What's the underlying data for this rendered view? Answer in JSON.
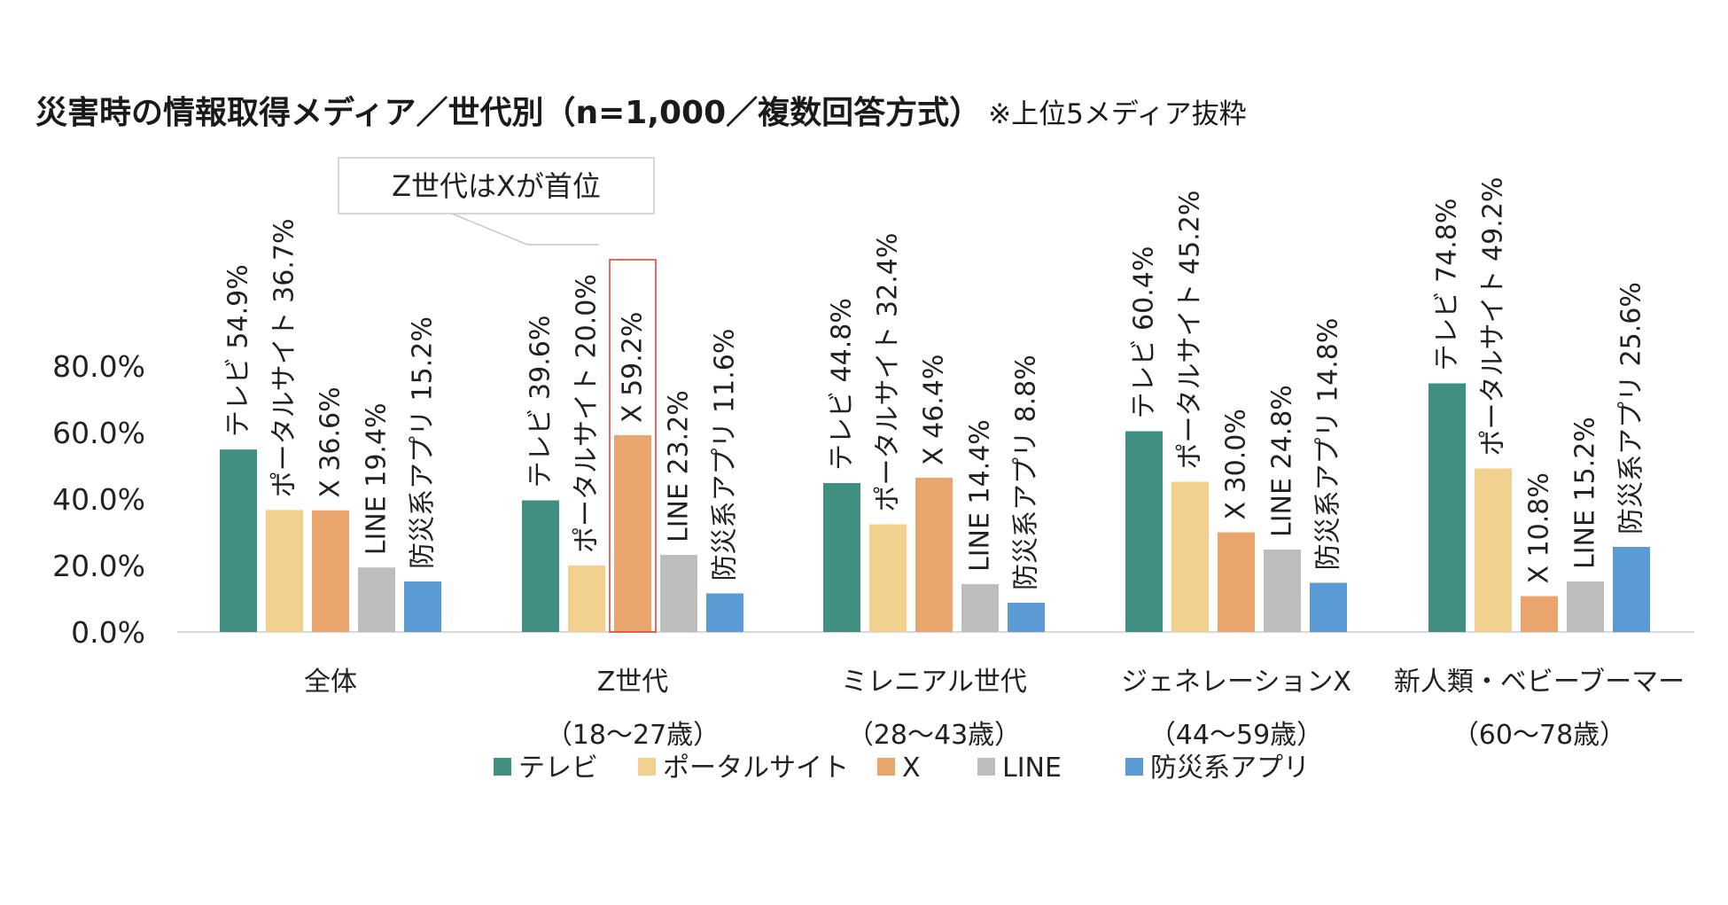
{
  "title": "災害時の情報取得メディア／世代別（n=1,000／複数回答方式）",
  "title_note": "※上位5メディア抜粋",
  "callout": "Z世代はXが首位",
  "colors": {
    "テレビ": "#3f9080",
    "ポータルサイト": "#f2d08d",
    "X": "#e9a56b",
    "LINE": "#bdbdbd",
    "防災系アプリ": "#5b9bd5",
    "highlight": "#e03c31"
  },
  "chart_data": {
    "type": "bar",
    "categories": [
      [
        "全体"
      ],
      [
        "Z世代",
        "（18～27歳）"
      ],
      [
        "ミレニアル世代",
        "（28～43歳）"
      ],
      [
        "ジェネレーションX",
        "（44～59歳）"
      ],
      [
        "新人類・ベビーブーマー",
        "（60～78歳）"
      ]
    ],
    "series": [
      {
        "name": "テレビ",
        "values": [
          54.9,
          39.6,
          44.8,
          60.4,
          74.8
        ]
      },
      {
        "name": "ポータルサイト",
        "values": [
          36.7,
          20.0,
          32.4,
          45.2,
          49.2
        ]
      },
      {
        "name": "X",
        "values": [
          36.6,
          59.2,
          46.4,
          30.0,
          10.8
        ]
      },
      {
        "name": "LINE",
        "values": [
          19.4,
          23.2,
          14.4,
          24.8,
          15.2
        ]
      },
      {
        "name": "防災系アプリ",
        "values": [
          15.2,
          11.6,
          8.8,
          14.8,
          25.6
        ]
      }
    ],
    "yticks": [
      "0.0%",
      "20.0%",
      "40.0%",
      "60.0%",
      "80.0%"
    ],
    "ylim": [
      0,
      80
    ],
    "highlight": {
      "category": 1,
      "series": "X"
    },
    "legend": [
      "テレビ",
      "ポータルサイト",
      "X",
      "LINE",
      "防災系アプリ"
    ],
    "legend_position": "bottom"
  }
}
